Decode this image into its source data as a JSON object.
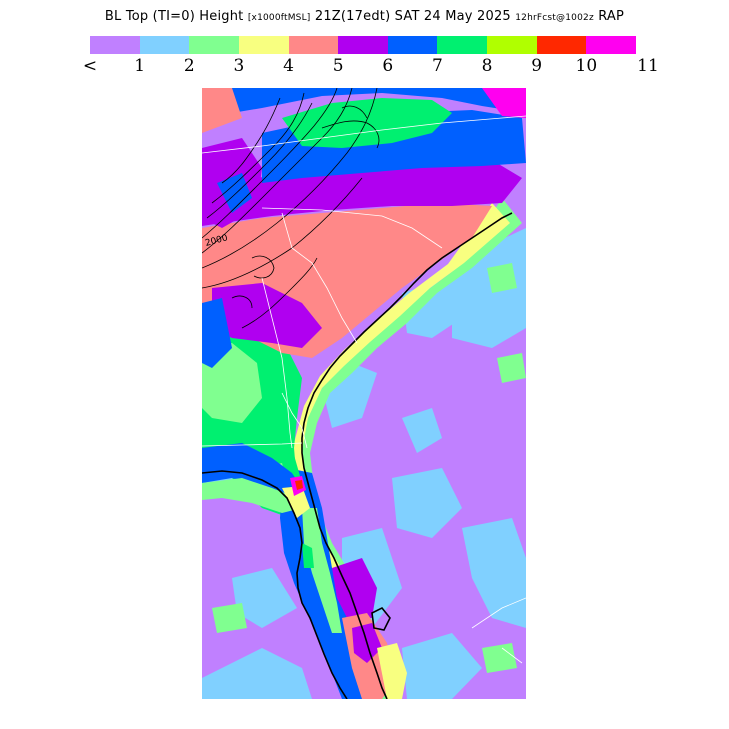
{
  "header": {
    "title_main": "BL Top (TI=0) Height",
    "title_units": "[x1000ftMSL]",
    "title_time": "21Z(17edt) SAT 24 May 2025",
    "title_forecast": "12hrFcst@1002z",
    "title_model": "RAP"
  },
  "legend": {
    "colors": [
      "#c080ff",
      "#80d0ff",
      "#80ff90",
      "#f8ff80",
      "#ff8888",
      "#b000f0",
      "#0060ff",
      "#00f070",
      "#b0ff00",
      "#ff2800",
      "#ff00f0"
    ],
    "labels": [
      "<",
      "1",
      "2",
      "3",
      "4",
      "5",
      "6",
      "7",
      "8",
      "9",
      "10",
      "11"
    ]
  },
  "map": {
    "contour_label": "2000"
  }
}
